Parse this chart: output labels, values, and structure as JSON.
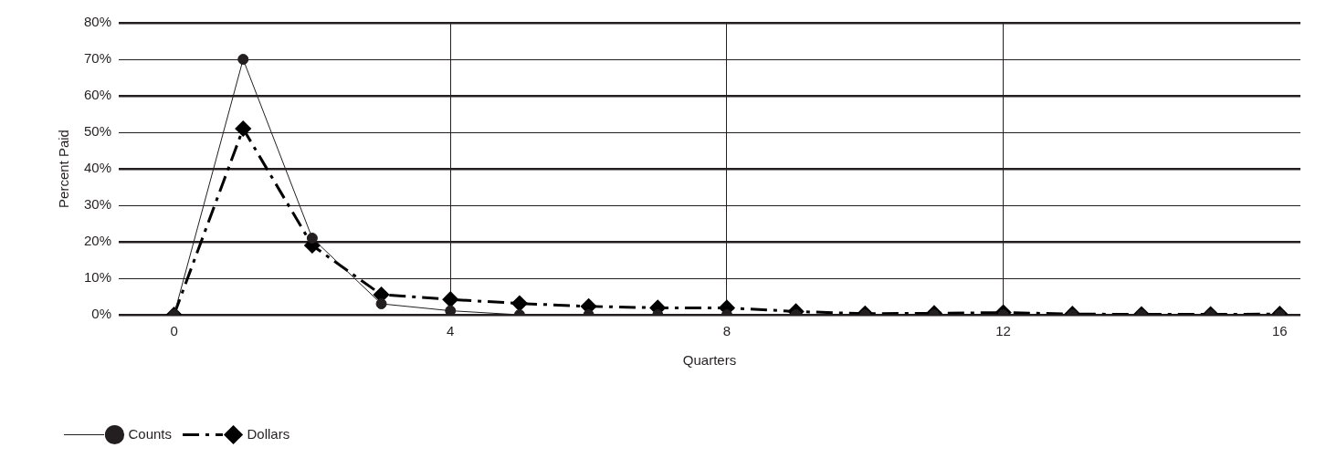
{
  "chart_data": {
    "type": "line",
    "xlabel": "Quarters",
    "ylabel": "Percent Paid",
    "x": [
      0,
      1,
      2,
      3,
      4,
      5,
      6,
      7,
      8,
      9,
      10,
      11,
      12,
      13,
      14,
      15,
      16
    ],
    "series": [
      {
        "name": "Counts",
        "color": "#231f20",
        "marker": "circle",
        "line_style": "solid",
        "values": [
          0,
          70,
          21,
          3,
          1.1,
          0,
          0,
          0,
          0,
          0,
          0,
          0,
          0,
          0,
          0,
          0,
          0
        ]
      },
      {
        "name": "Dollars",
        "color": "#000000",
        "marker": "diamond",
        "line_style": "dashed",
        "values": [
          0,
          51,
          19,
          5.5,
          4.2,
          3.1,
          2.3,
          1.9,
          1.9,
          0.9,
          0.3,
          0.4,
          0.6,
          0.2,
          0.1,
          0.1,
          0.2
        ]
      }
    ],
    "xlim": [
      -0.8,
      16.3
    ],
    "xticks": [
      0,
      4,
      8,
      12,
      16
    ],
    "ylim": [
      0,
      80
    ],
    "yticks": [
      {
        "value": 0,
        "label": "0%"
      },
      {
        "value": 10,
        "label": "10%"
      },
      {
        "value": 20,
        "label": "20%"
      },
      {
        "value": 30,
        "label": "30%"
      },
      {
        "value": 40,
        "label": "40%"
      },
      {
        "value": 50,
        "label": "50%"
      },
      {
        "value": 60,
        "label": "60%"
      },
      {
        "value": 70,
        "label": "70%"
      },
      {
        "value": 80,
        "label": "80%"
      }
    ],
    "grid": true,
    "legend": "bottom left"
  }
}
